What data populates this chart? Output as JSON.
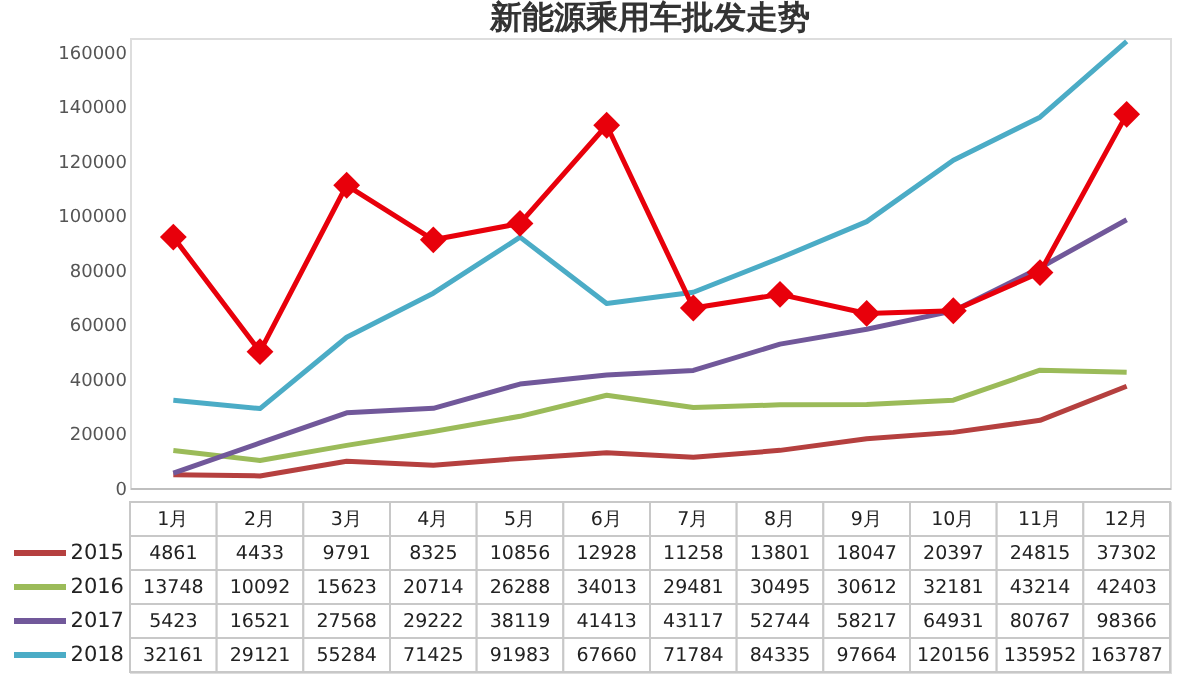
{
  "chart_data": {
    "type": "line",
    "title": "新能源乘用车批发走势",
    "categories": [
      "1月",
      "2月",
      "3月",
      "4月",
      "5月",
      "6月",
      "7月",
      "8月",
      "9月",
      "10月",
      "11月",
      "12月"
    ],
    "series": [
      {
        "name": "2015",
        "color": "#b5403f",
        "values": [
          4861,
          4433,
          9791,
          8325,
          10856,
          12928,
          11258,
          13801,
          18047,
          20397,
          24815,
          37302
        ],
        "value_labels": [
          "4861",
          "4433",
          "9791",
          "8325",
          "10856",
          "12928",
          "11258",
          "13801",
          "18047",
          "20397",
          "24815",
          "37302"
        ]
      },
      {
        "name": "2016",
        "color": "#9bbb59",
        "values": [
          13748,
          10092,
          15623,
          20714,
          26288,
          34013,
          29481,
          30495,
          30612,
          32181,
          43214,
          42403
        ],
        "value_labels": [
          "13748",
          "10092",
          "15623",
          "20714",
          "26288",
          "34013",
          "29481",
          "30495",
          "30612",
          "32181",
          "43214",
          "42403"
        ]
      },
      {
        "name": "2017",
        "color": "#71589a",
        "values": [
          5423,
          16521,
          27568,
          29222,
          38119,
          41413,
          43117,
          52744,
          58217,
          64931,
          80767,
          98366
        ],
        "value_labels": [
          "5423",
          "16521",
          "27568",
          "29222",
          "38119",
          "41413",
          "43117",
          "52744",
          "58217",
          "64931",
          "80767",
          "98366"
        ]
      },
      {
        "name": "2018",
        "color": "#4bacc6",
        "values": [
          32161,
          29121,
          55284,
          71425,
          91983,
          67660,
          71784,
          84335,
          97664,
          120156,
          135952,
          163787
        ],
        "value_labels": [
          "32161",
          "29121",
          "55284",
          "71425",
          "91983",
          "67660",
          "71784",
          "84335",
          "97664",
          "120156",
          "135952",
          "163787"
        ]
      },
      {
        "color": "#e8000b",
        "marker": "diamond",
        "values": [
          92000,
          50000,
          111000,
          91000,
          97000,
          133000,
          66000,
          71000,
          64000,
          65000,
          79000,
          137000
        ]
      }
    ],
    "ylim": [
      0,
      165000
    ],
    "yticks": [
      0,
      20000,
      40000,
      60000,
      80000,
      100000,
      120000,
      140000,
      160000
    ],
    "grid": false,
    "legend": "bottom",
    "tick_labels": "y",
    "marker": "none",
    "line_style": "solid"
  }
}
